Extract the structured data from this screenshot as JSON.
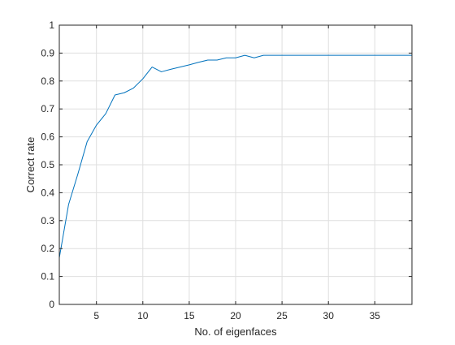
{
  "chart_data": {
    "type": "line",
    "title": "",
    "xlabel": "No. of eigenfaces",
    "ylabel": "Correct rate",
    "xlim": [
      1,
      39
    ],
    "ylim": [
      0,
      1
    ],
    "grid": true,
    "x_ticks": [
      5,
      10,
      15,
      20,
      25,
      30,
      35
    ],
    "y_ticks": [
      0,
      0.1,
      0.2,
      0.3,
      0.4,
      0.5,
      0.6,
      0.7,
      0.8,
      0.9,
      1
    ],
    "x_tick_labels": [
      "5",
      "10",
      "15",
      "20",
      "25",
      "30",
      "35"
    ],
    "y_tick_labels": [
      "0",
      "0.1",
      "0.2",
      "0.3",
      "0.4",
      "0.5",
      "0.6",
      "0.7",
      "0.8",
      "0.9",
      "1"
    ],
    "line_color": "#0072BD",
    "series": [
      {
        "x": [
          1,
          2,
          3,
          4,
          5,
          6,
          7,
          8,
          9,
          10,
          11,
          12,
          13,
          14,
          15,
          16,
          17,
          18,
          19,
          20,
          21,
          22,
          23,
          24,
          25,
          26,
          27,
          28,
          29,
          30,
          31,
          32,
          33,
          34,
          35,
          36,
          37,
          38,
          39
        ],
        "values": [
          0.167,
          0.358,
          0.467,
          0.583,
          0.642,
          0.683,
          0.75,
          0.758,
          0.775,
          0.808,
          0.85,
          0.833,
          0.842,
          0.85,
          0.858,
          0.867,
          0.875,
          0.875,
          0.883,
          0.883,
          0.892,
          0.883,
          0.892,
          0.892,
          0.892,
          0.892,
          0.892,
          0.892,
          0.892,
          0.892,
          0.892,
          0.892,
          0.892,
          0.892,
          0.892,
          0.892,
          0.892,
          0.892,
          0.892
        ]
      }
    ]
  }
}
